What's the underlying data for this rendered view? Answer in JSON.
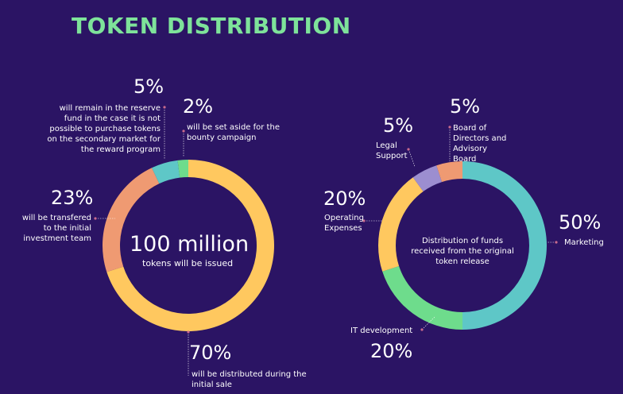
{
  "title": "TOKEN DISTRIBUTION",
  "colors": {
    "background": "#2b1464",
    "title": "#7ee39a",
    "yellow": "#ffc85f",
    "salmon": "#ef9a72",
    "teal": "#5ec7c7",
    "green": "#6edc8c",
    "lavender": "#9c8ed0",
    "connector": "#c86b8e"
  },
  "left_chart": {
    "center_value": "100 million",
    "center_caption": "tokens will be issued",
    "labels": [
      {
        "pct": "70%",
        "text": "will be distributed during the initial sale"
      },
      {
        "pct": "23%",
        "text": "will be transfered to the initial investment team"
      },
      {
        "pct": "5%",
        "text": "will remain in the reserve fund in the case it is not possible to purchase tokens on the secondary market for the reward program"
      },
      {
        "pct": "2%",
        "text": "will be set aside for the bounty campaign"
      }
    ]
  },
  "right_chart": {
    "center_text": "Distribution of funds received from the original token release",
    "labels": [
      {
        "pct": "50%",
        "text": "Marketing"
      },
      {
        "pct": "20%",
        "text": "IT development"
      },
      {
        "pct": "20%",
        "text": "Operating Expenses"
      },
      {
        "pct": "5%",
        "text": "Legal Support"
      },
      {
        "pct": "5%",
        "text": "Board of Directors and Advisory Board"
      }
    ]
  },
  "chart_data": [
    {
      "type": "pie",
      "title": "",
      "categories": [
        "will be distributed during the initial sale",
        "will be transfered to the initial investment team",
        "will remain in the reserve fund",
        "will be set aside for the bounty campaign"
      ],
      "values": [
        70,
        23,
        5,
        2
      ],
      "colors": [
        "#ffc85f",
        "#ef9a72",
        "#5ec7c7",
        "#6edc8c"
      ]
    },
    {
      "type": "pie",
      "title": "",
      "categories": [
        "Marketing",
        "IT development",
        "Operating Expenses",
        "Legal Support",
        "Board of Directors and Advisory Board"
      ],
      "values": [
        50,
        20,
        20,
        5,
        5
      ],
      "colors": [
        "#5ec7c7",
        "#6edc8c",
        "#ffc85f",
        "#9c8ed0",
        "#ef9a72"
      ]
    }
  ]
}
